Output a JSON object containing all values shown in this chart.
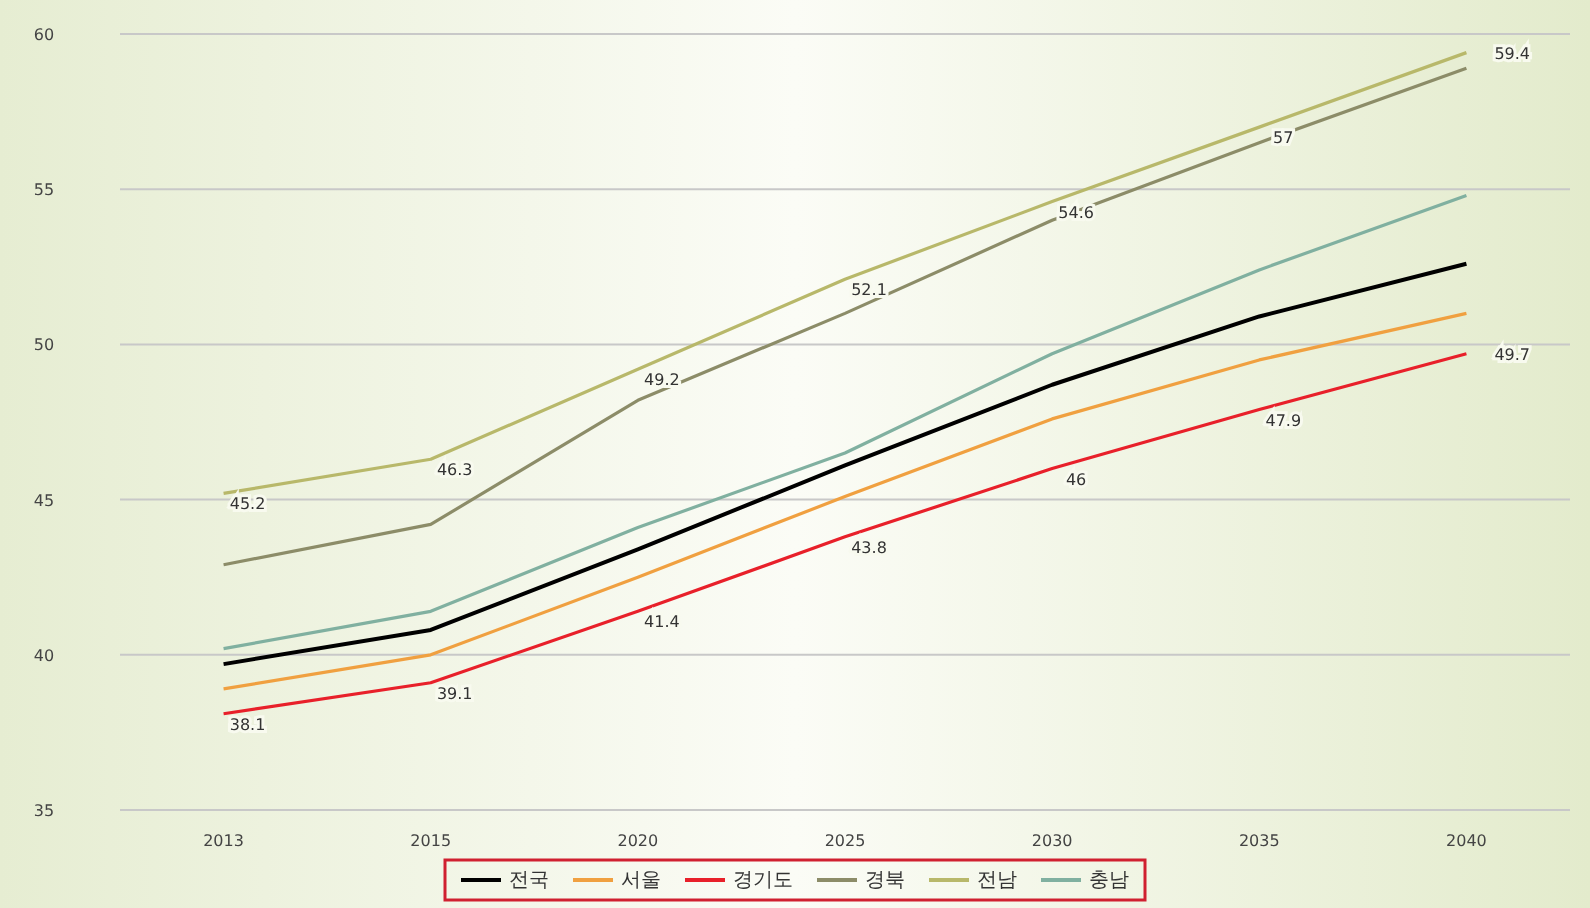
{
  "chart_data": {
    "type": "line",
    "categories": [
      "2013",
      "2015",
      "2020",
      "2025",
      "2030",
      "2035",
      "2040"
    ],
    "ylim": [
      35,
      60
    ],
    "yticks": [
      35,
      40,
      45,
      50,
      55,
      60
    ],
    "grid": "y",
    "legend": "bottom",
    "line_style": "solid",
    "marker": "none",
    "series": [
      {
        "name": "전국",
        "color": "#000000",
        "values": [
          39.7,
          40.8,
          43.4,
          46.1,
          48.7,
          50.9,
          52.6
        ]
      },
      {
        "name": "서울",
        "color": "#f0a040",
        "values": [
          38.9,
          40.0,
          42.5,
          45.1,
          47.6,
          49.5,
          51.0
        ]
      },
      {
        "name": "경기도",
        "color": "#e8202a",
        "values": [
          38.1,
          39.1,
          41.4,
          43.8,
          46,
          47.9,
          49.7
        ],
        "value_labels": [
          "38.1",
          "39.1",
          "41.4",
          "43.8",
          "46",
          "47.9",
          "49.7"
        ]
      },
      {
        "name": "경북",
        "color": "#8c8c68",
        "values": [
          42.9,
          44.2,
          48.2,
          51.0,
          54.0,
          56.5,
          58.9
        ]
      },
      {
        "name": "전남",
        "color": "#b8b86a",
        "values": [
          45.2,
          46.3,
          49.2,
          52.1,
          54.6,
          57,
          59.4
        ],
        "value_labels": [
          "45.2",
          "46.3",
          "49.2",
          "52.1",
          "54.6",
          "57",
          "59.4"
        ]
      },
      {
        "name": "충남",
        "color": "#80b0a0",
        "values": [
          40.2,
          41.4,
          44.1,
          46.5,
          49.7,
          52.4,
          54.8
        ]
      }
    ]
  }
}
